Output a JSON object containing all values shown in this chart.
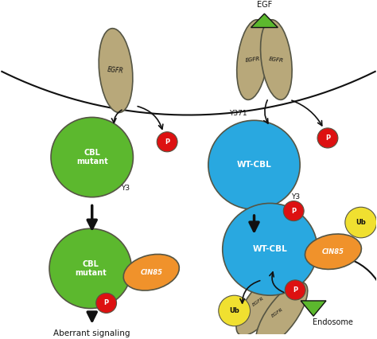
{
  "bg_color": "#ffffff",
  "egfr_color": "#b8a87a",
  "egfr_stroke": "#555544",
  "green_color": "#5cb82e",
  "blue_color": "#29a8e0",
  "orange_color": "#f0922b",
  "yellow_color": "#f0e030",
  "red_color": "#dd1111",
  "black_color": "#111111",
  "white_color": "#ffffff",
  "label_egf": "EGF",
  "label_egfr": "EGFR",
  "label_cbl_mutant": "CBL\nmutant",
  "label_wt_cbl": "WT-CBL",
  "label_cin85": "CIN85",
  "label_ub": "Ub",
  "label_p": "P",
  "label_y3": "Y3",
  "label_y371": "Y371",
  "label_aberrant": "Aberrant signaling",
  "label_endosome": "Endosome"
}
